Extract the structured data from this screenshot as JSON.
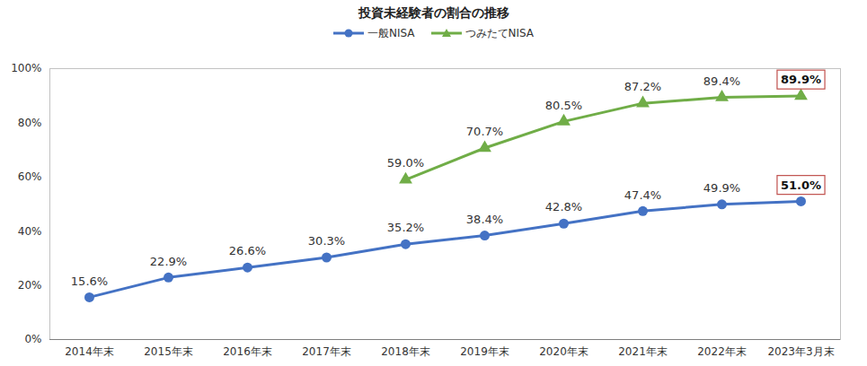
{
  "chart_data": {
    "type": "line",
    "title": "投資未経験者の割合の推移",
    "categories": [
      "2014年末",
      "2015年末",
      "2016年末",
      "2017年末",
      "2018年末",
      "2019年末",
      "2020年末",
      "2021年末",
      "2022年末",
      "2023年3月末"
    ],
    "series": [
      {
        "name": "一般NISA",
        "color": "#4472c4",
        "marker": "circle",
        "values": [
          15.6,
          22.9,
          26.6,
          30.3,
          35.2,
          38.4,
          42.8,
          47.4,
          49.9,
          51.0
        ],
        "value_labels": [
          "15.6%",
          "22.9%",
          "26.6%",
          "30.3%",
          "35.2%",
          "38.4%",
          "42.8%",
          "47.4%",
          "49.9%",
          "51.0%"
        ]
      },
      {
        "name": "つみたてNISA",
        "color": "#70ad47",
        "marker": "triangle",
        "values": [
          null,
          null,
          null,
          null,
          59.0,
          70.7,
          80.5,
          87.2,
          89.4,
          89.9
        ],
        "value_labels": [
          null,
          null,
          null,
          null,
          "59.0%",
          "70.7%",
          "80.5%",
          "87.2%",
          "89.4%",
          "89.9%"
        ]
      }
    ],
    "ylim": [
      0,
      100
    ],
    "yticks": [
      {
        "value": 0,
        "label": "0%"
      },
      {
        "value": 20,
        "label": "20%"
      },
      {
        "value": 40,
        "label": "40%"
      },
      {
        "value": 60,
        "label": "60%"
      },
      {
        "value": 80,
        "label": "80%"
      },
      {
        "value": 100,
        "label": "100%"
      }
    ],
    "grid": false,
    "legend": "top",
    "data_labels": true
  }
}
